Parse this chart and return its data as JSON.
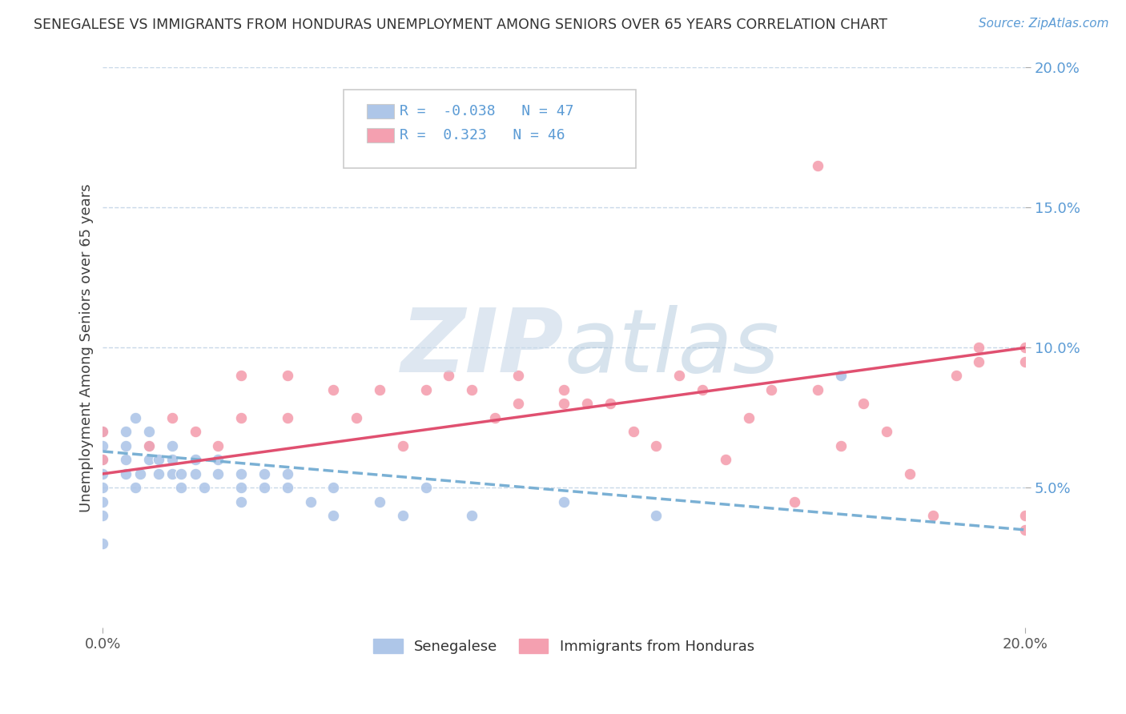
{
  "title": "SENEGALESE VS IMMIGRANTS FROM HONDURAS UNEMPLOYMENT AMONG SENIORS OVER 65 YEARS CORRELATION CHART",
  "source": "Source: ZipAtlas.com",
  "ylabel": "Unemployment Among Seniors over 65 years",
  "xlim": [
    0.0,
    0.2
  ],
  "ylim": [
    0.0,
    0.2
  ],
  "blue_color": "#aec6e8",
  "blue_line_color": "#7ab0d4",
  "pink_color": "#f4a0b0",
  "pink_line_color": "#e05070",
  "background_color": "#ffffff",
  "grid_color": "#c8d8e8",
  "blue_R": -0.038,
  "blue_N": 47,
  "pink_R": 0.323,
  "pink_N": 46,
  "blue_trend_start": 0.063,
  "blue_trend_end": 0.035,
  "pink_trend_start": 0.055,
  "pink_trend_end": 0.1,
  "ytick_positions": [
    0.05,
    0.1,
    0.15,
    0.2
  ],
  "ytick_labels": [
    "5.0%",
    "10.0%",
    "15.0%",
    "20.0%"
  ],
  "xtick_positions": [
    0.0,
    0.2
  ],
  "xtick_labels": [
    "0.0%",
    "20.0%"
  ],
  "blue_x": [
    0.0,
    0.0,
    0.0,
    0.0,
    0.0,
    0.0,
    0.0,
    0.0,
    0.005,
    0.005,
    0.005,
    0.005,
    0.007,
    0.007,
    0.008,
    0.01,
    0.01,
    0.01,
    0.012,
    0.012,
    0.015,
    0.015,
    0.015,
    0.017,
    0.017,
    0.02,
    0.02,
    0.022,
    0.025,
    0.025,
    0.03,
    0.03,
    0.03,
    0.035,
    0.035,
    0.04,
    0.04,
    0.045,
    0.05,
    0.05,
    0.06,
    0.065,
    0.07,
    0.08,
    0.1,
    0.12,
    0.16
  ],
  "blue_y": [
    0.05,
    0.055,
    0.06,
    0.065,
    0.07,
    0.04,
    0.045,
    0.03,
    0.055,
    0.06,
    0.065,
    0.07,
    0.05,
    0.075,
    0.055,
    0.06,
    0.065,
    0.07,
    0.055,
    0.06,
    0.055,
    0.06,
    0.065,
    0.05,
    0.055,
    0.055,
    0.06,
    0.05,
    0.055,
    0.06,
    0.05,
    0.055,
    0.045,
    0.05,
    0.055,
    0.05,
    0.055,
    0.045,
    0.04,
    0.05,
    0.045,
    0.04,
    0.05,
    0.04,
    0.045,
    0.04,
    0.09
  ],
  "pink_x": [
    0.0,
    0.0,
    0.01,
    0.015,
    0.02,
    0.025,
    0.03,
    0.03,
    0.04,
    0.04,
    0.05,
    0.055,
    0.06,
    0.065,
    0.07,
    0.075,
    0.08,
    0.085,
    0.09,
    0.09,
    0.1,
    0.1,
    0.105,
    0.11,
    0.115,
    0.12,
    0.125,
    0.13,
    0.135,
    0.14,
    0.145,
    0.15,
    0.155,
    0.155,
    0.16,
    0.165,
    0.17,
    0.175,
    0.18,
    0.185,
    0.19,
    0.19,
    0.2,
    0.2,
    0.2,
    0.2
  ],
  "pink_y": [
    0.06,
    0.07,
    0.065,
    0.075,
    0.07,
    0.065,
    0.075,
    0.09,
    0.075,
    0.09,
    0.085,
    0.075,
    0.085,
    0.065,
    0.085,
    0.09,
    0.085,
    0.075,
    0.08,
    0.09,
    0.085,
    0.08,
    0.08,
    0.08,
    0.07,
    0.065,
    0.09,
    0.085,
    0.06,
    0.075,
    0.085,
    0.045,
    0.085,
    0.165,
    0.065,
    0.08,
    0.07,
    0.055,
    0.04,
    0.09,
    0.095,
    0.1,
    0.095,
    0.1,
    0.04,
    0.035
  ]
}
